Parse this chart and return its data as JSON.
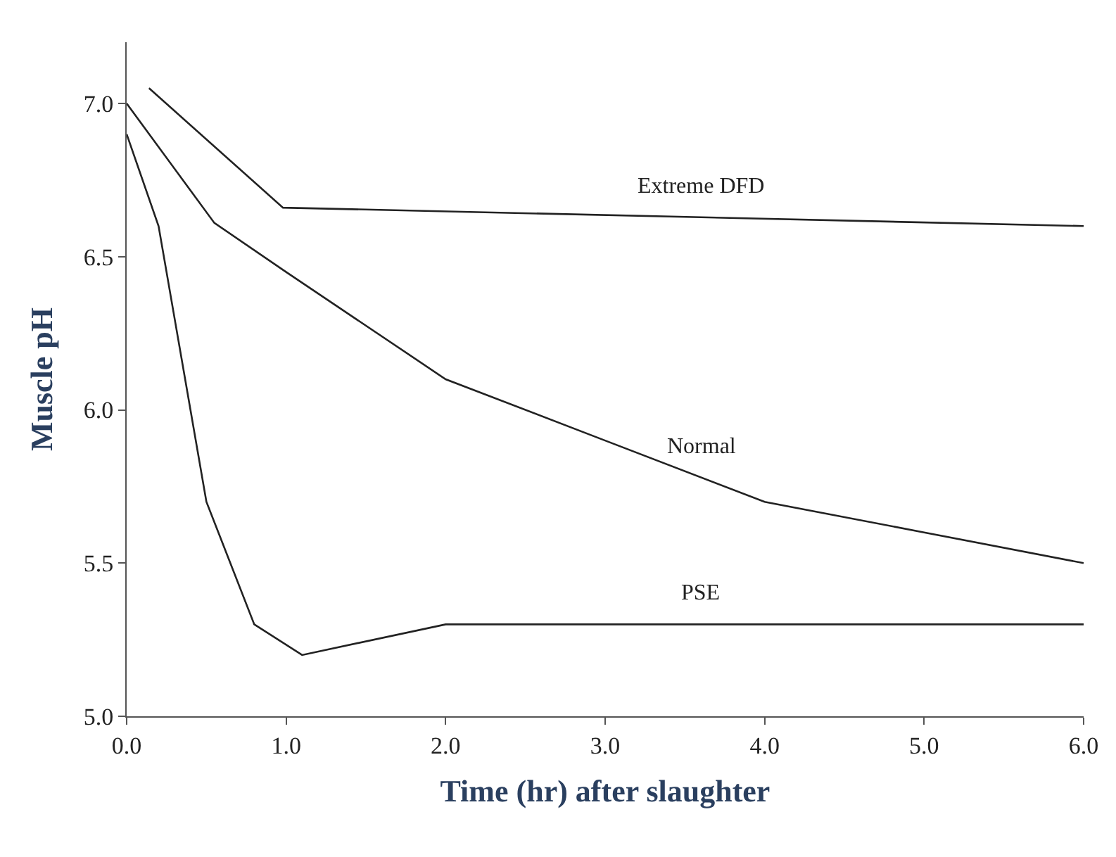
{
  "chart_data": {
    "type": "line",
    "xlabel": "Time (hr) after slaughter",
    "ylabel": "Muscle pH",
    "xlim": [
      0,
      6
    ],
    "ylim": [
      5,
      7.2
    ],
    "xticks": [
      {
        "value": 0,
        "label": "0.0"
      },
      {
        "value": 1,
        "label": "1.0"
      },
      {
        "value": 2,
        "label": "2.0"
      },
      {
        "value": 3,
        "label": "3.0"
      },
      {
        "value": 4,
        "label": "4.0"
      },
      {
        "value": 5,
        "label": "5.0"
      },
      {
        "value": 6,
        "label": "6.0"
      }
    ],
    "yticks": [
      {
        "value": 5,
        "label": "5.0"
      },
      5.5,
      {
        "value": 6,
        "label": "6.0"
      },
      6.5,
      {
        "value": 7,
        "label": "7.0"
      }
    ],
    "legend": false,
    "marker": "none",
    "line_style": "solid",
    "series": [
      {
        "name": "Extreme DFD",
        "color": "#222222",
        "x": [
          0.14,
          0.98,
          6.0
        ],
        "values": [
          7.05,
          6.66,
          6.6
        ]
      },
      {
        "name": "Normal",
        "color": "#222222",
        "x": [
          0,
          0.55,
          1.0,
          2.0,
          3.0,
          4.0,
          5.0,
          6.0
        ],
        "values": [
          7.0,
          6.61,
          6.45,
          6.1,
          5.9,
          5.7,
          5.6,
          5.5
        ]
      },
      {
        "name": "PSE",
        "color": "#222222",
        "x": [
          0,
          0.2,
          0.5,
          0.8,
          1.1,
          2.0,
          6.0
        ],
        "values": [
          6.9,
          6.6,
          5.7,
          5.3,
          5.2,
          5.3,
          5.3
        ]
      }
    ]
  }
}
